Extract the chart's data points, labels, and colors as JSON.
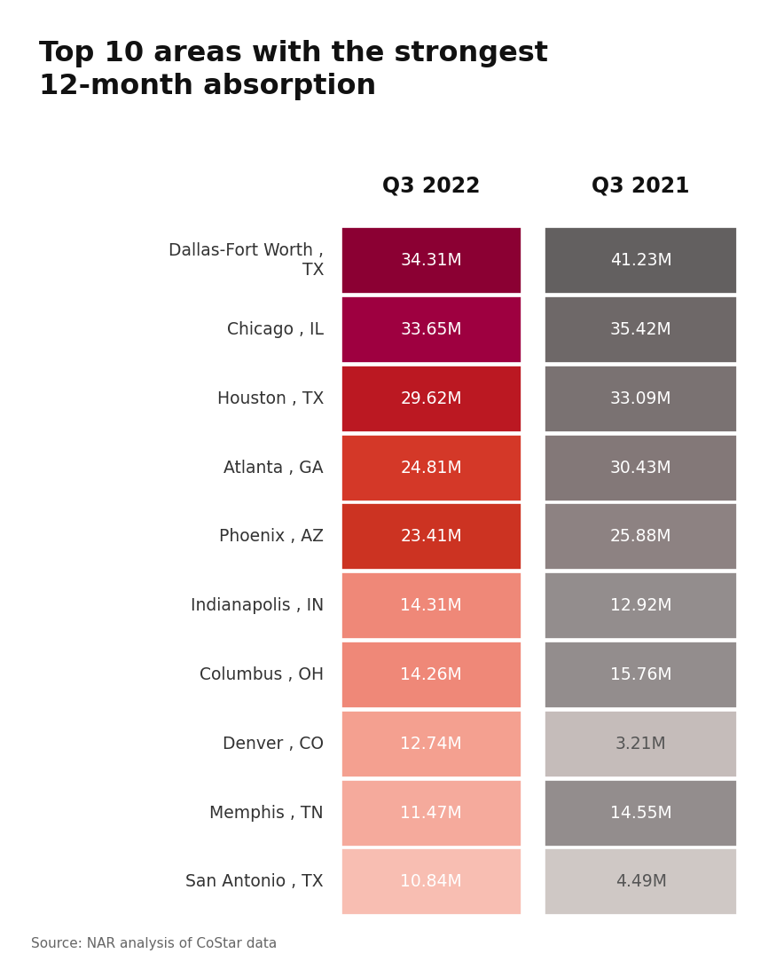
{
  "title": "Top 10 areas with the strongest\n12-month absorption",
  "source": "Source: NAR analysis of CoStar data",
  "col1_header": "Q3 2022",
  "col2_header": "Q3 2021",
  "areas": [
    "Dallas-Fort Worth ,\nTX",
    "Chicago , IL",
    "Houston , TX",
    "Atlanta , GA",
    "Phoenix , AZ",
    "Indianapolis , IN",
    "Columbus , OH",
    "Denver , CO",
    "Memphis , TN",
    "San Antonio , TX"
  ],
  "q3_2022": [
    "34.31M",
    "33.65M",
    "29.62M",
    "24.81M",
    "23.41M",
    "14.31M",
    "14.26M",
    "12.74M",
    "11.47M",
    "10.84M"
  ],
  "q3_2021": [
    "41.23M",
    "35.42M",
    "33.09M",
    "30.43M",
    "25.88M",
    "12.92M",
    "15.76M",
    "3.21M",
    "14.55M",
    "4.49M"
  ],
  "colors_2022": [
    "#8B0033",
    "#9E0040",
    "#BB1822",
    "#D43828",
    "#CC3322",
    "#EF8878",
    "#EF8878",
    "#F4A090",
    "#F5AA9C",
    "#F8BEB2"
  ],
  "colors_2021": [
    "#636060",
    "#6E6868",
    "#7A7272",
    "#837878",
    "#8D8282",
    "#938D8D",
    "#938D8D",
    "#C5BCBA",
    "#938D8D",
    "#CFC8C5"
  ],
  "text_colors_2022": [
    "#FFFFFF",
    "#FFFFFF",
    "#FFFFFF",
    "#FFFFFF",
    "#FFFFFF",
    "#FFFFFF",
    "#FFFFFF",
    "#FFFFFF",
    "#FFFFFF",
    "#FFFFFF"
  ],
  "text_colors_2021": [
    "#FFFFFF",
    "#FFFFFF",
    "#FFFFFF",
    "#FFFFFF",
    "#FFFFFF",
    "#FFFFFF",
    "#FFFFFF",
    "#555555",
    "#FFFFFF",
    "#555555"
  ],
  "title_bg_color": "#E5E5E5",
  "bg_color": "#FFFFFF",
  "title_fontsize": 23,
  "header_fontsize": 17,
  "area_fontsize": 13.5,
  "value_fontsize": 13.5
}
